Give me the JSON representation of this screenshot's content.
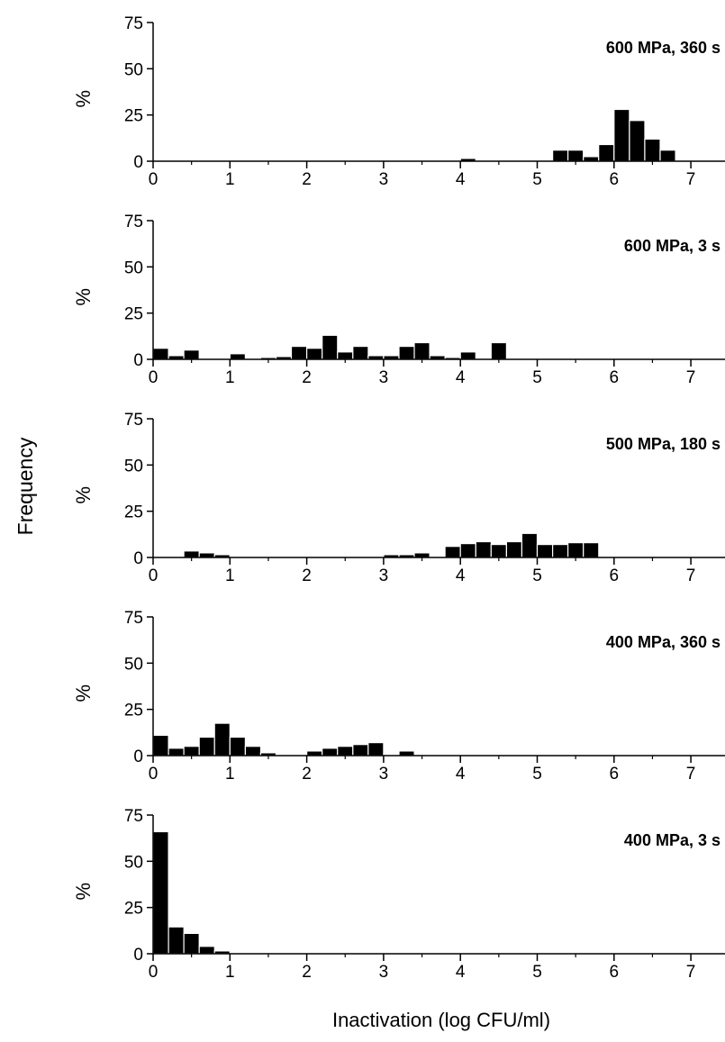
{
  "figure": {
    "y_title": "Frequency",
    "x_title": "Inactivation (log CFU/ml)"
  },
  "chart_data": [
    {
      "type": "bar",
      "title": "600 MPa, 360 s",
      "ylabel": "%",
      "ylim": [
        0,
        75
      ],
      "yticks": [
        0,
        25,
        50,
        75
      ],
      "xlim": [
        0,
        7.4
      ],
      "xticks": [
        0,
        1,
        2,
        3,
        4,
        5,
        6,
        7
      ],
      "bin_width": 0.2,
      "x": [
        3.3,
        4.1,
        5.3,
        5.5,
        5.7,
        5.9,
        6.1,
        6.3,
        6.5,
        6.7,
        6.9
      ],
      "values": [
        0.3,
        1.5,
        6,
        6,
        2.5,
        9,
        28,
        22,
        12,
        6,
        0
      ]
    },
    {
      "type": "bar",
      "title": "600 MPa, 3 s",
      "ylabel": "%",
      "ylim": [
        0,
        75
      ],
      "yticks": [
        0,
        25,
        50,
        75
      ],
      "xlim": [
        0,
        7.4
      ],
      "xticks": [
        0,
        1,
        2,
        3,
        4,
        5,
        6,
        7
      ],
      "bin_width": 0.2,
      "x": [
        0.1,
        0.3,
        0.5,
        1.1,
        1.5,
        1.7,
        1.9,
        2.1,
        2.3,
        2.5,
        2.7,
        2.9,
        3.1,
        3.3,
        3.5,
        3.7,
        3.9,
        4.1,
        4.5,
        5.3
      ],
      "values": [
        6,
        2,
        5,
        3,
        1,
        1.5,
        7,
        6,
        13,
        4,
        7,
        2,
        2,
        7,
        9,
        2,
        1,
        4,
        9,
        0
      ]
    },
    {
      "type": "bar",
      "title": "500 MPa, 180 s",
      "ylabel": "%",
      "ylim": [
        0,
        75
      ],
      "yticks": [
        0,
        25,
        50,
        75
      ],
      "xlim": [
        0,
        7.4
      ],
      "xticks": [
        0,
        1,
        2,
        3,
        4,
        5,
        6,
        7
      ],
      "bin_width": 0.2,
      "x": [
        0.5,
        0.7,
        0.9,
        1.1,
        1.5,
        3.1,
        3.3,
        3.5,
        3.9,
        4.1,
        4.3,
        4.5,
        4.7,
        4.9,
        5.1,
        5.3,
        5.5,
        5.7,
        6.3
      ],
      "values": [
        3.5,
        2.5,
        1.5,
        0.5,
        0.5,
        1.5,
        1.5,
        2.5,
        6,
        7.5,
        8.5,
        7,
        8.5,
        13,
        7,
        7,
        8,
        8,
        0
      ]
    },
    {
      "type": "bar",
      "title": "400 MPa, 360 s",
      "ylabel": "%",
      "ylim": [
        0,
        75
      ],
      "yticks": [
        0,
        25,
        50,
        75
      ],
      "xlim": [
        0,
        7.4
      ],
      "xticks": [
        0,
        1,
        2,
        3,
        4,
        5,
        6,
        7
      ],
      "bin_width": 0.2,
      "x": [
        0.1,
        0.3,
        0.5,
        0.7,
        0.9,
        1.1,
        1.3,
        1.5,
        1.7,
        2.1,
        2.3,
        2.5,
        2.7,
        2.9,
        3.1,
        3.3,
        3.7
      ],
      "values": [
        11,
        4,
        5,
        10,
        17.5,
        10,
        5,
        1.5,
        0.5,
        2.5,
        4,
        5,
        6,
        7,
        0.5,
        2.5,
        0
      ]
    },
    {
      "type": "bar",
      "title": "400 MPa, 3 s",
      "ylabel": "%",
      "ylim": [
        0,
        75
      ],
      "yticks": [
        0,
        25,
        50,
        75
      ],
      "xlim": [
        0,
        7.4
      ],
      "xticks": [
        0,
        1,
        2,
        3,
        4,
        5,
        6,
        7
      ],
      "bin_width": 0.2,
      "x": [
        0.1,
        0.3,
        0.5,
        0.7,
        0.9,
        1.3
      ],
      "values": [
        66,
        14.5,
        11,
        4,
        1.5,
        0
      ]
    }
  ]
}
